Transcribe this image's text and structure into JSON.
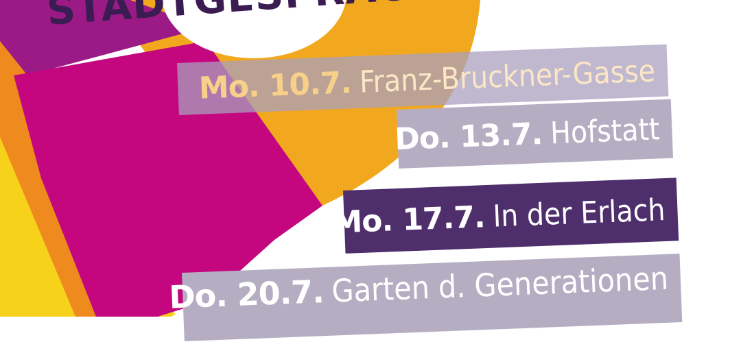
{
  "title": "STADTGESPRÄCH",
  "colors": {
    "purple": "#4e2f6c",
    "lilac": "#b5aec3",
    "orange": "#f2a81e",
    "magenta": "#c4077f",
    "yellow": "#f7d21a"
  },
  "events": [
    {
      "date": "Mo. 10.7.",
      "place": "Franz-Bruckner-Gasse"
    },
    {
      "date": "Do. 13.7.",
      "place": "Hofstatt"
    },
    {
      "date": "Mo. 17.7.",
      "place": "In der Erlach"
    },
    {
      "date": "Do. 20.7.",
      "place": "Garten d. Generationen"
    }
  ]
}
